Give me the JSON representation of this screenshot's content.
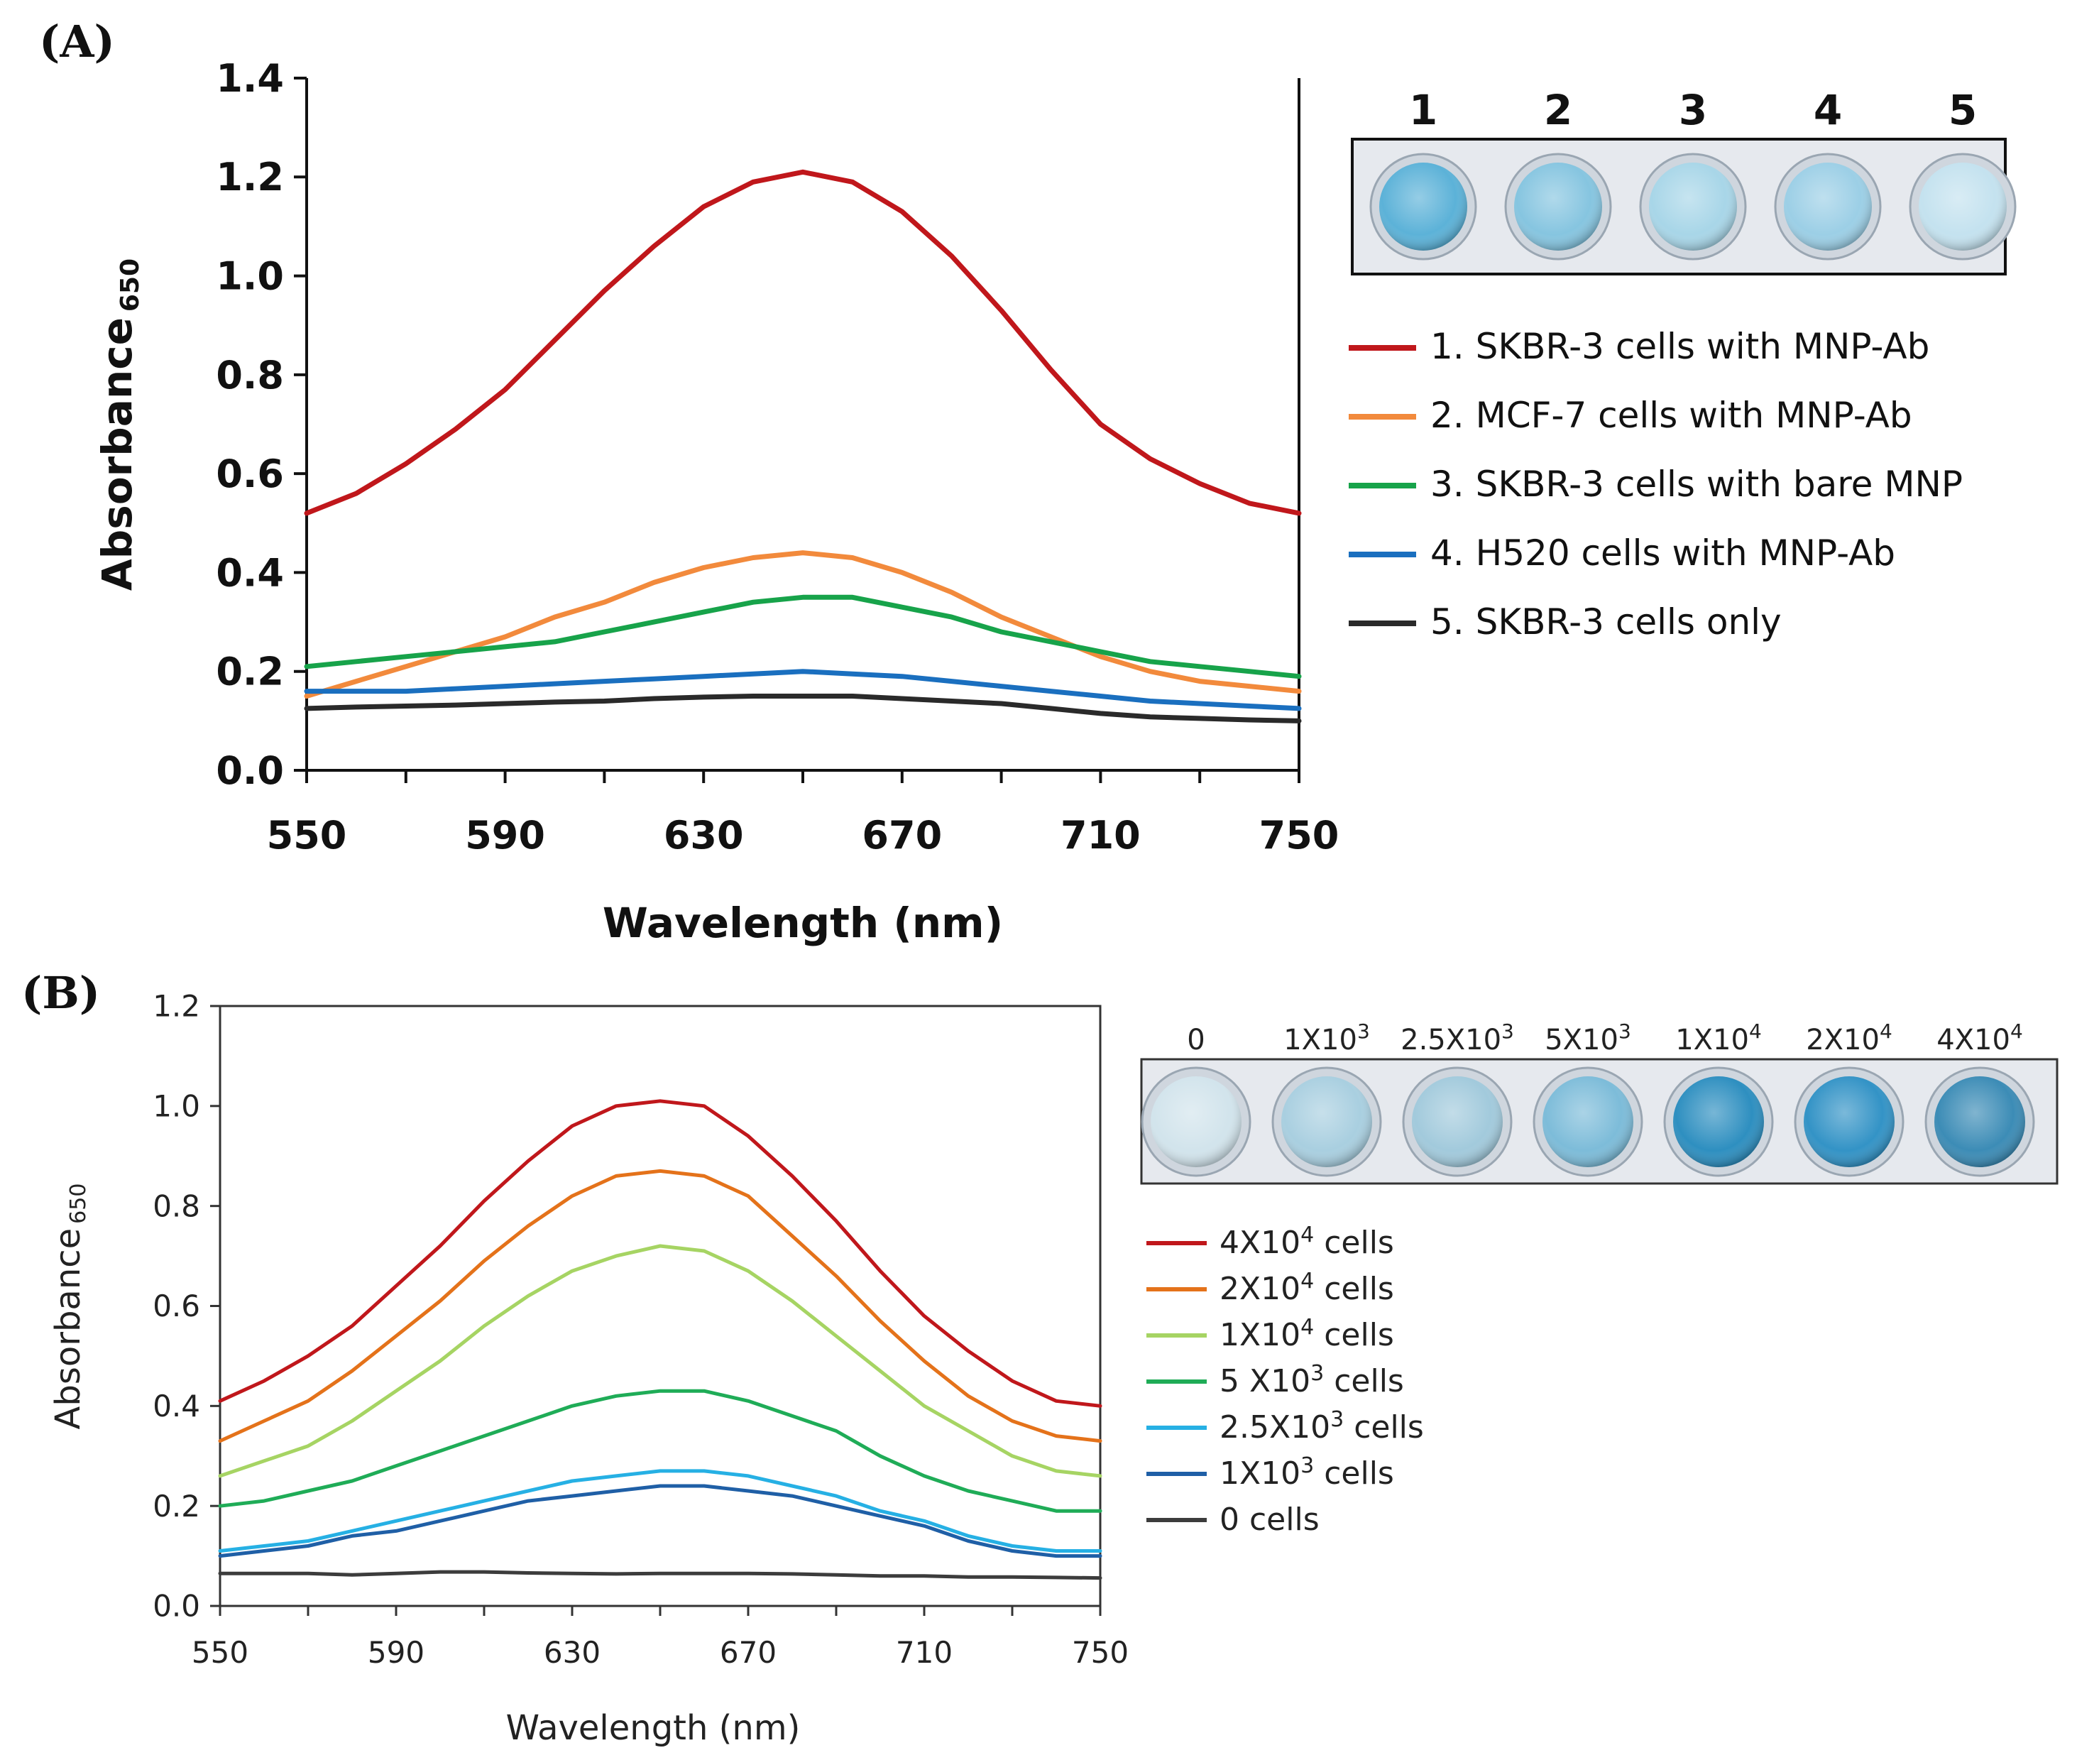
{
  "chart_data": [
    {
      "type": "line",
      "panel_label": "(A)",
      "xlabel": "Wavelength (nm)",
      "ylabel_main": "Absorbance",
      "ylabel_sub": "650",
      "xlim": [
        550,
        750
      ],
      "ylim": [
        0.0,
        1.4
      ],
      "xticks": [
        "550",
        "590",
        "630",
        "670",
        "710",
        "750"
      ],
      "yticks": [
        "0.0",
        "0.2",
        "0.4",
        "0.6",
        "0.8",
        "1.0",
        "1.2",
        "1.4"
      ],
      "grid": false,
      "legend_position": "right",
      "x": [
        550,
        560,
        570,
        580,
        590,
        600,
        610,
        620,
        630,
        640,
        650,
        660,
        670,
        680,
        690,
        700,
        710,
        720,
        730,
        740,
        750
      ],
      "series": [
        {
          "name": "1. SKBR-3 cells with MNP-Ab",
          "color": "#c0171b",
          "values": [
            0.52,
            0.56,
            0.62,
            0.69,
            0.77,
            0.87,
            0.97,
            1.06,
            1.14,
            1.19,
            1.21,
            1.19,
            1.13,
            1.04,
            0.93,
            0.81,
            0.7,
            0.63,
            0.58,
            0.54,
            0.52
          ]
        },
        {
          "name": "2. MCF-7 cells with MNP-Ab",
          "color": "#f28a3c",
          "values": [
            0.15,
            0.18,
            0.21,
            0.24,
            0.27,
            0.31,
            0.34,
            0.38,
            0.41,
            0.43,
            0.44,
            0.43,
            0.4,
            0.36,
            0.31,
            0.27,
            0.23,
            0.2,
            0.18,
            0.17,
            0.16
          ]
        },
        {
          "name": "3. SKBR-3 cells with bare MNP",
          "color": "#17a34a",
          "values": [
            0.21,
            0.22,
            0.23,
            0.24,
            0.25,
            0.26,
            0.28,
            0.3,
            0.32,
            0.34,
            0.35,
            0.35,
            0.33,
            0.31,
            0.28,
            0.26,
            0.24,
            0.22,
            0.21,
            0.2,
            0.19
          ]
        },
        {
          "name": "4. H520 cells with MNP-Ab",
          "color": "#1a6fbf",
          "values": [
            0.16,
            0.16,
            0.16,
            0.165,
            0.17,
            0.175,
            0.18,
            0.185,
            0.19,
            0.195,
            0.2,
            0.195,
            0.19,
            0.18,
            0.17,
            0.16,
            0.15,
            0.14,
            0.135,
            0.13,
            0.125
          ]
        },
        {
          "name": "5. SKBR-3 cells only",
          "color": "#2a2a2a",
          "values": [
            0.125,
            0.128,
            0.13,
            0.132,
            0.135,
            0.138,
            0.14,
            0.145,
            0.148,
            0.15,
            0.15,
            0.15,
            0.145,
            0.14,
            0.135,
            0.125,
            0.115,
            0.108,
            0.105,
            0.102,
            0.1
          ]
        }
      ],
      "inset": {
        "wells": [
          {
            "label": "1",
            "color": "#5cb2d8"
          },
          {
            "label": "2",
            "color": "#86c5e0"
          },
          {
            "label": "3",
            "color": "#a8d6e8"
          },
          {
            "label": "4",
            "color": "#9ccfe6"
          },
          {
            "label": "5",
            "color": "#c4e2ef"
          }
        ]
      }
    },
    {
      "type": "line",
      "panel_label": "(B)",
      "xlabel": "Wavelength (nm)",
      "ylabel_main": "Absorbance",
      "ylabel_sub": "650",
      "xlim": [
        550,
        750
      ],
      "ylim": [
        0.0,
        1.2
      ],
      "xticks": [
        "550",
        "590",
        "630",
        "670",
        "710",
        "750"
      ],
      "yticks": [
        "0.0",
        "0.2",
        "0.4",
        "0.6",
        "0.8",
        "1.0",
        "1.2"
      ],
      "grid": false,
      "legend_position": "right",
      "x": [
        550,
        560,
        570,
        580,
        590,
        600,
        610,
        620,
        630,
        640,
        650,
        660,
        670,
        680,
        690,
        700,
        710,
        720,
        730,
        740,
        750
      ],
      "series": [
        {
          "base": "4X10",
          "sup": "4",
          "unit": " cells",
          "color": "#c0171b",
          "values": [
            0.41,
            0.45,
            0.5,
            0.56,
            0.64,
            0.72,
            0.81,
            0.89,
            0.96,
            1.0,
            1.01,
            1.0,
            0.94,
            0.86,
            0.77,
            0.67,
            0.58,
            0.51,
            0.45,
            0.41,
            0.4
          ]
        },
        {
          "base": "2X10",
          "sup": "4",
          "unit": " cells",
          "color": "#e4721a",
          "values": [
            0.33,
            0.37,
            0.41,
            0.47,
            0.54,
            0.61,
            0.69,
            0.76,
            0.82,
            0.86,
            0.87,
            0.86,
            0.82,
            0.74,
            0.66,
            0.57,
            0.49,
            0.42,
            0.37,
            0.34,
            0.33
          ]
        },
        {
          "base": "1X10",
          "sup": "4",
          "unit": " cells",
          "color": "#a6d463",
          "values": [
            0.26,
            0.29,
            0.32,
            0.37,
            0.43,
            0.49,
            0.56,
            0.62,
            0.67,
            0.7,
            0.72,
            0.71,
            0.67,
            0.61,
            0.54,
            0.47,
            0.4,
            0.35,
            0.3,
            0.27,
            0.26
          ]
        },
        {
          "base": "5 X10",
          "sup": "3",
          "unit": " cells",
          "color": "#1fac57",
          "values": [
            0.2,
            0.21,
            0.23,
            0.25,
            0.28,
            0.31,
            0.34,
            0.37,
            0.4,
            0.42,
            0.43,
            0.43,
            0.41,
            0.38,
            0.35,
            0.3,
            0.26,
            0.23,
            0.21,
            0.19,
            0.19
          ]
        },
        {
          "base": "2.5X10",
          "sup": "3",
          "unit": " cells",
          "color": "#26b0e4",
          "values": [
            0.11,
            0.12,
            0.13,
            0.15,
            0.17,
            0.19,
            0.21,
            0.23,
            0.25,
            0.26,
            0.27,
            0.27,
            0.26,
            0.24,
            0.22,
            0.19,
            0.17,
            0.14,
            0.12,
            0.11,
            0.11
          ]
        },
        {
          "base": "1X10",
          "sup": "3",
          "unit": " cells",
          "color": "#1f5fa6",
          "values": [
            0.1,
            0.11,
            0.12,
            0.14,
            0.15,
            0.17,
            0.19,
            0.21,
            0.22,
            0.23,
            0.24,
            0.24,
            0.23,
            0.22,
            0.2,
            0.18,
            0.16,
            0.13,
            0.11,
            0.1,
            0.1
          ]
        },
        {
          "base": "0",
          "sup": "",
          "unit": " cells",
          "color": "#3c3c3c",
          "values": [
            0.065,
            0.065,
            0.065,
            0.062,
            0.065,
            0.068,
            0.068,
            0.066,
            0.065,
            0.064,
            0.065,
            0.065,
            0.065,
            0.064,
            0.062,
            0.06,
            0.06,
            0.058,
            0.058,
            0.057,
            0.056
          ]
        }
      ],
      "inset": {
        "wells": [
          {
            "base": "0",
            "sup": "",
            "color": "#d2e4ec"
          },
          {
            "base": "1X10",
            "sup": "3",
            "color": "#a9cfe0"
          },
          {
            "base": "2.5X10",
            "sup": "3",
            "color": "#a2cadc"
          },
          {
            "base": "5X10",
            "sup": "3",
            "color": "#7dbcd9"
          },
          {
            "base": "1X10",
            "sup": "4",
            "color": "#2e8fc0"
          },
          {
            "base": "2X10",
            "sup": "4",
            "color": "#3393c6"
          },
          {
            "base": "4X10",
            "sup": "4",
            "color": "#3c8cb6"
          }
        ]
      }
    }
  ]
}
